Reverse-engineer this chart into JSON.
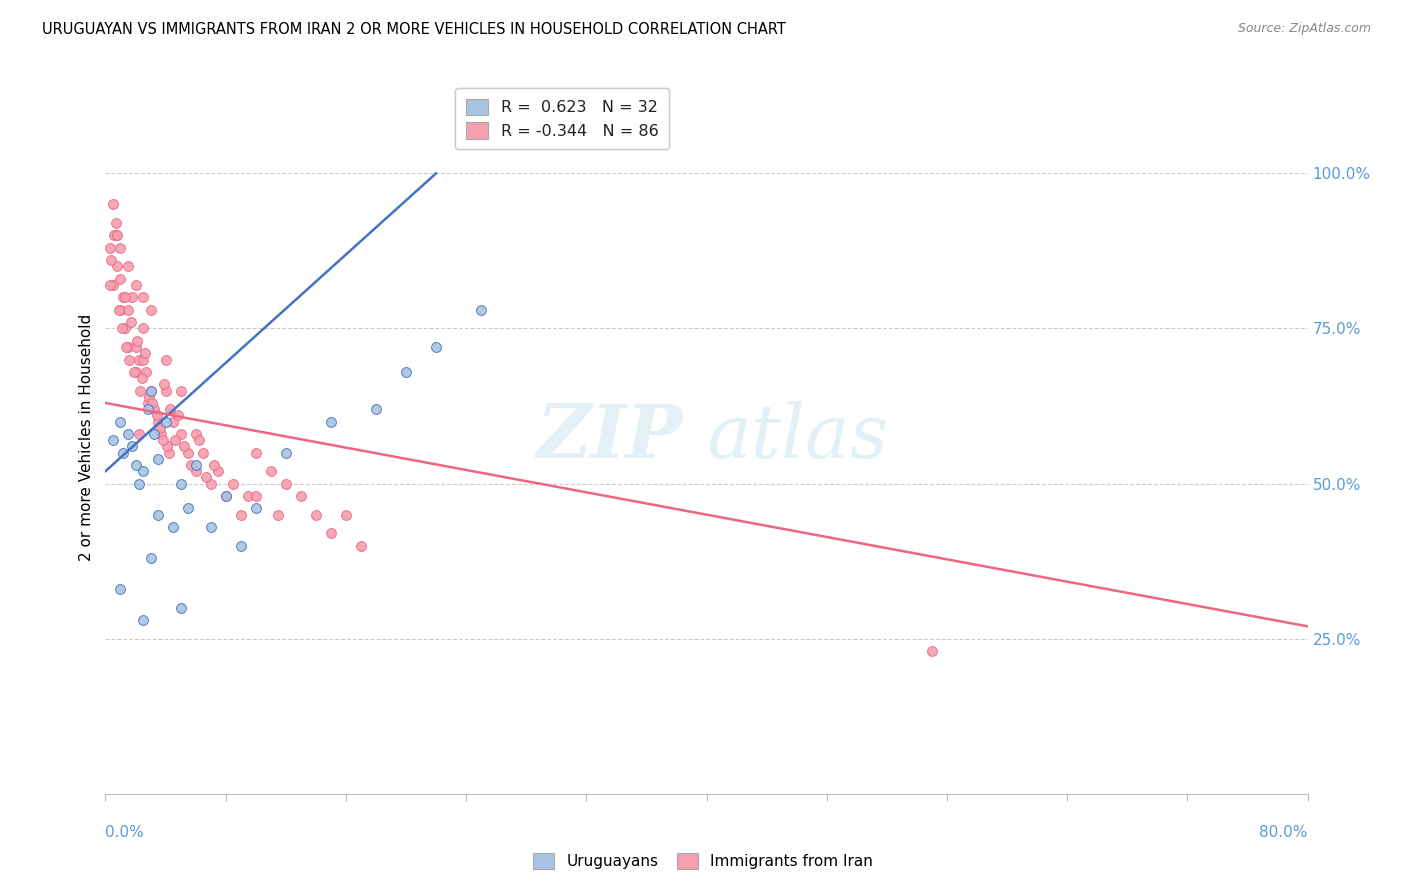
{
  "title": "URUGUAYAN VS IMMIGRANTS FROM IRAN 2 OR MORE VEHICLES IN HOUSEHOLD CORRELATION CHART",
  "source": "Source: ZipAtlas.com",
  "ylabel": "2 or more Vehicles in Household",
  "xlim": [
    0.0,
    80.0
  ],
  "ylim": [
    0.0,
    115.0
  ],
  "yticks_right": [
    25.0,
    50.0,
    75.0,
    100.0
  ],
  "ytick_labels_right": [
    "25.0%",
    "50.0%",
    "75.0%",
    "100.0%"
  ],
  "uruguayan_color": "#a8c4e0",
  "iran_color": "#f4a0b0",
  "line_uruguayan_color": "#4472c4",
  "line_iran_color": "#ee6680",
  "uruguayan_scatter": [
    [
      0.5,
      57
    ],
    [
      1.0,
      60
    ],
    [
      1.2,
      55
    ],
    [
      1.5,
      58
    ],
    [
      1.8,
      56
    ],
    [
      2.0,
      53
    ],
    [
      2.2,
      50
    ],
    [
      2.5,
      52
    ],
    [
      2.8,
      62
    ],
    [
      3.0,
      65
    ],
    [
      3.2,
      58
    ],
    [
      3.5,
      54
    ],
    [
      4.0,
      60
    ],
    [
      4.5,
      43
    ],
    [
      5.0,
      50
    ],
    [
      5.5,
      46
    ],
    [
      6.0,
      53
    ],
    [
      7.0,
      43
    ],
    [
      8.0,
      48
    ],
    [
      9.0,
      40
    ],
    [
      10.0,
      46
    ],
    [
      12.0,
      55
    ],
    [
      15.0,
      60
    ],
    [
      18.0,
      62
    ],
    [
      20.0,
      68
    ],
    [
      22.0,
      72
    ],
    [
      25.0,
      78
    ],
    [
      1.0,
      33
    ],
    [
      2.5,
      28
    ],
    [
      3.0,
      38
    ],
    [
      5.0,
      30
    ],
    [
      3.5,
      45
    ]
  ],
  "iran_scatter": [
    [
      0.3,
      88
    ],
    [
      0.5,
      82
    ],
    [
      0.7,
      90
    ],
    [
      0.8,
      85
    ],
    [
      1.0,
      78
    ],
    [
      1.0,
      83
    ],
    [
      1.2,
      80
    ],
    [
      1.3,
      75
    ],
    [
      1.5,
      78
    ],
    [
      1.5,
      72
    ],
    [
      1.7,
      76
    ],
    [
      1.8,
      80
    ],
    [
      2.0,
      68
    ],
    [
      2.0,
      72
    ],
    [
      2.2,
      70
    ],
    [
      2.3,
      65
    ],
    [
      2.5,
      70
    ],
    [
      2.5,
      75
    ],
    [
      2.7,
      68
    ],
    [
      2.8,
      63
    ],
    [
      3.0,
      65
    ],
    [
      3.2,
      62
    ],
    [
      3.5,
      60
    ],
    [
      3.7,
      58
    ],
    [
      4.0,
      65
    ],
    [
      4.0,
      70
    ],
    [
      4.2,
      55
    ],
    [
      4.5,
      60
    ],
    [
      5.0,
      58
    ],
    [
      5.0,
      65
    ],
    [
      5.5,
      55
    ],
    [
      6.0,
      58
    ],
    [
      6.0,
      52
    ],
    [
      6.5,
      55
    ],
    [
      7.0,
      50
    ],
    [
      7.5,
      52
    ],
    [
      8.0,
      48
    ],
    [
      8.5,
      50
    ],
    [
      9.0,
      45
    ],
    [
      9.5,
      48
    ],
    [
      10.0,
      55
    ],
    [
      10.0,
      48
    ],
    [
      11.0,
      52
    ],
    [
      11.5,
      45
    ],
    [
      12.0,
      50
    ],
    [
      13.0,
      48
    ],
    [
      14.0,
      45
    ],
    [
      15.0,
      42
    ],
    [
      16.0,
      45
    ],
    [
      17.0,
      40
    ],
    [
      0.5,
      95
    ],
    [
      0.7,
      92
    ],
    [
      1.0,
      88
    ],
    [
      1.5,
      85
    ],
    [
      2.0,
      82
    ],
    [
      2.5,
      80
    ],
    [
      3.0,
      78
    ],
    [
      0.3,
      82
    ],
    [
      0.4,
      86
    ],
    [
      0.6,
      90
    ],
    [
      0.9,
      78
    ],
    [
      1.1,
      75
    ],
    [
      1.4,
      72
    ],
    [
      1.6,
      70
    ],
    [
      1.9,
      68
    ],
    [
      2.1,
      73
    ],
    [
      2.4,
      67
    ],
    [
      2.6,
      71
    ],
    [
      2.9,
      64
    ],
    [
      3.1,
      63
    ],
    [
      3.4,
      61
    ],
    [
      3.6,
      59
    ],
    [
      3.9,
      66
    ],
    [
      4.1,
      56
    ],
    [
      4.3,
      62
    ],
    [
      4.6,
      57
    ],
    [
      4.8,
      61
    ],
    [
      5.2,
      56
    ],
    [
      5.7,
      53
    ],
    [
      6.2,
      57
    ],
    [
      6.7,
      51
    ],
    [
      7.2,
      53
    ],
    [
      55.0,
      23
    ],
    [
      0.8,
      90
    ],
    [
      1.3,
      80
    ],
    [
      2.2,
      58
    ],
    [
      3.8,
      57
    ]
  ],
  "uruguayan_line_x": [
    0.0,
    22.0
  ],
  "uruguayan_line_y": [
    52.0,
    100.0
  ],
  "iran_line_x": [
    0.0,
    80.0
  ],
  "iran_line_y": [
    63.0,
    27.0
  ]
}
